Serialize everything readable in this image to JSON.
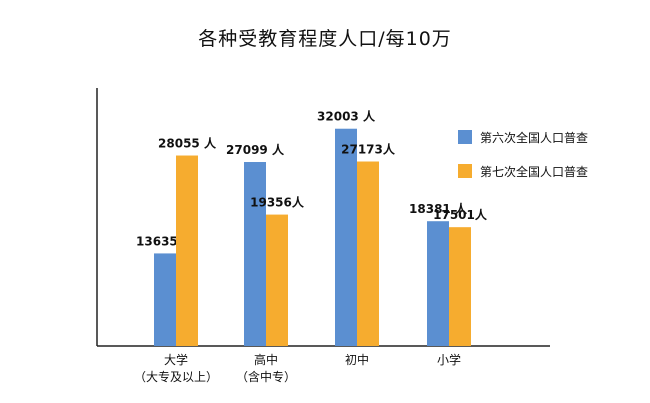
{
  "chart_data": {
    "type": "bar",
    "title": "各种受教育程度人口/每10万",
    "xlabel": "",
    "ylabel": "",
    "ylim": [
      0,
      38000
    ],
    "grid": false,
    "legend_position": "right",
    "categories": [
      [
        "大学",
        "（大专及以上）"
      ],
      [
        "高中",
        "（含中专）"
      ],
      [
        "初中"
      ],
      [
        "小学"
      ]
    ],
    "series": [
      {
        "name": "第六次全国人口普查",
        "color": "#5b8fd1",
        "values": [
          13635,
          27099,
          32003,
          18381
        ],
        "labels": [
          "13635 人",
          "27099 人",
          "32003 人",
          "18381 人"
        ]
      },
      {
        "name": "第七次全国人口普查",
        "color": "#f6ac2f",
        "values": [
          28055,
          19356,
          27173,
          17501
        ],
        "labels": [
          "28055 人",
          "19356人",
          "27173人",
          "17501人"
        ]
      }
    ]
  }
}
